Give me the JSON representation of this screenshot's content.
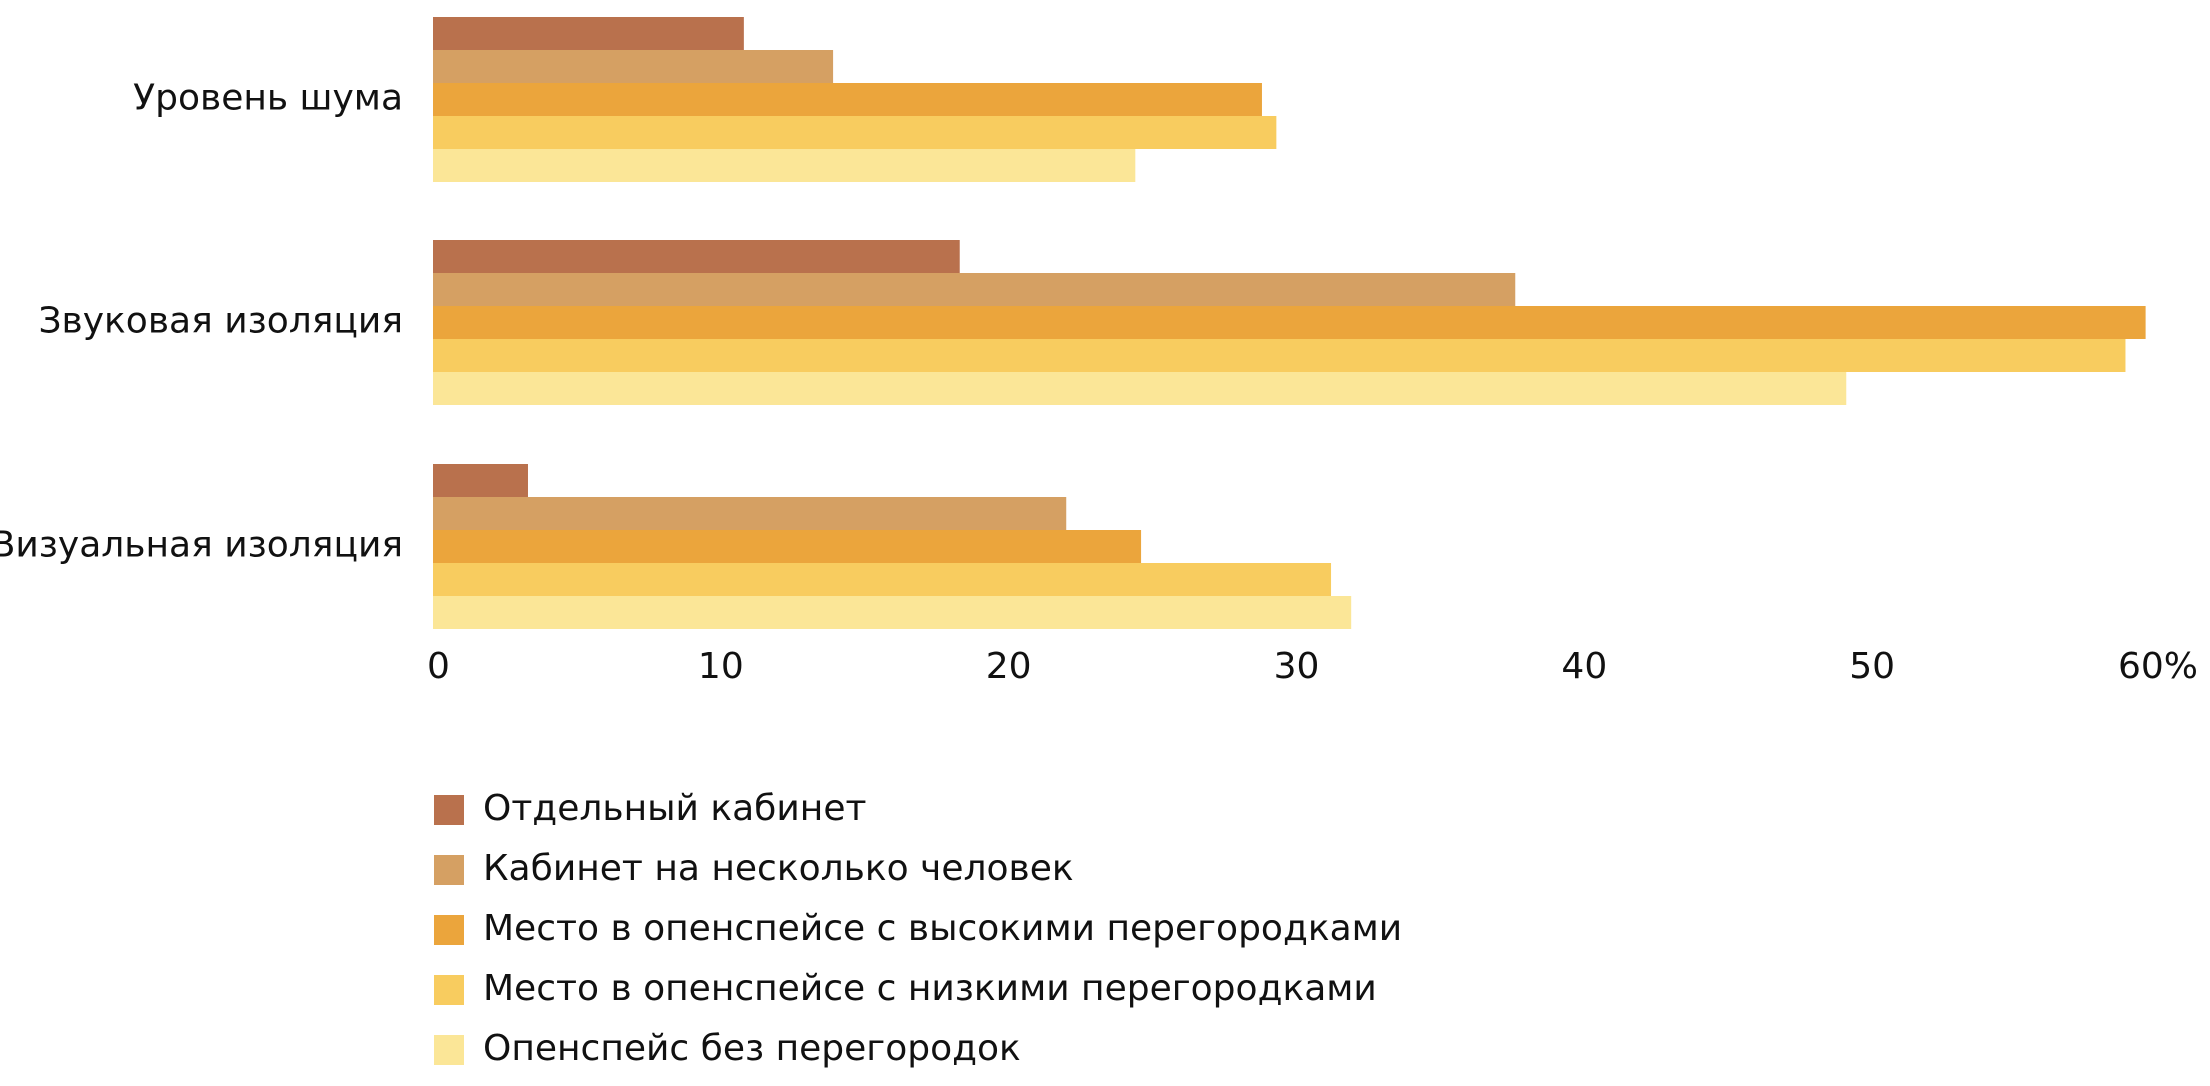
{
  "chart_data": {
    "type": "bar",
    "orientation": "horizontal",
    "categories": [
      "Уровень шума",
      "Звуковая изоляция",
      "Визуальная изоляция"
    ],
    "series": [
      {
        "name": "Отдельный кабинет",
        "color": "#b9714d",
        "values": [
          10.8,
          18.3,
          3.3
        ]
      },
      {
        "name": "Кабинет на несколько человек",
        "color": "#d5a063",
        "values": [
          13.9,
          37.6,
          22.0
        ]
      },
      {
        "name": "Место в опенспейсе с высокими перегородками",
        "color": "#eba53c",
        "values": [
          28.8,
          59.5,
          24.6
        ]
      },
      {
        "name": "Место в опенспейсе с низкими перегородками",
        "color": "#f8cc5f",
        "values": [
          29.3,
          58.8,
          31.2
        ]
      },
      {
        "name": "Опенспейс без перегородок",
        "color": "#fbe697",
        "values": [
          24.4,
          49.1,
          31.9
        ]
      }
    ],
    "xlim": [
      0,
      60
    ],
    "x_ticks": [
      "0",
      "10",
      "20",
      "30",
      "40",
      "50",
      "60%"
    ],
    "grid": false,
    "legend_position": "bottom-left",
    "title": "",
    "xlabel": "",
    "ylabel": ""
  }
}
